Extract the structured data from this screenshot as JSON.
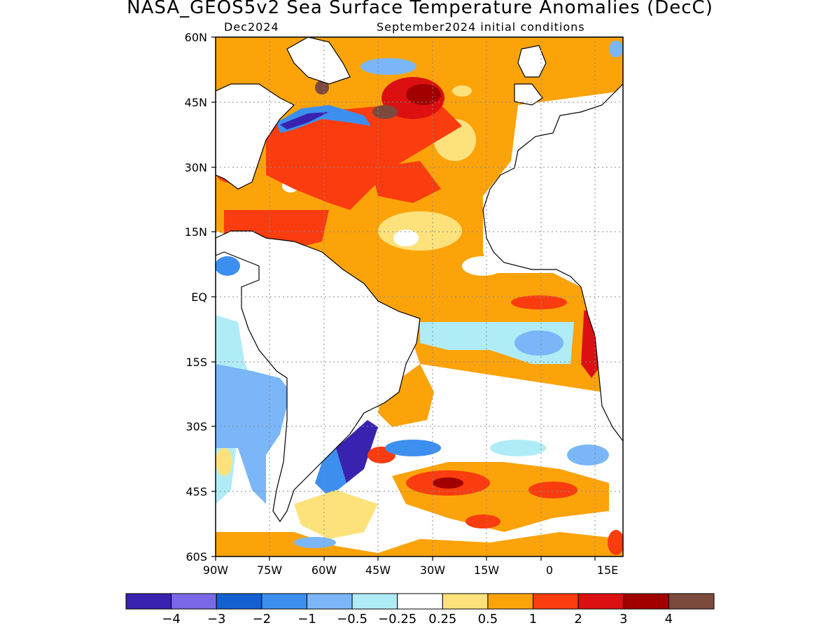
{
  "title": "NASA_GEOS5v2 Sea Surface Temperature Anomalies (DecC)",
  "subtitle_left": "Dec2024",
  "subtitle_right": "September2024 initial conditions",
  "lat_ticks": [
    "60N",
    "45N",
    "30N",
    "15N",
    "EQ",
    "15S",
    "30S",
    "45S",
    "60S"
  ],
  "lon_ticks": [
    "90W",
    "75W",
    "60W",
    "45W",
    "30W",
    "15W",
    "0",
    "15E"
  ],
  "colorbar": {
    "colors": [
      "#3a22b0",
      "#7b68e6",
      "#1560d0",
      "#3d8fef",
      "#7ab6f8",
      "#b0ecf6",
      "#ffffff",
      "#fde27c",
      "#fca30a",
      "#fa3c0f",
      "#dc1010",
      "#a20000",
      "#7b4a3c"
    ],
    "labels": [
      "-4",
      "-3",
      "-2",
      "-1",
      "-0.5",
      "-0.25",
      "0.25",
      "0.5",
      "1",
      "2",
      "3",
      "4"
    ]
  },
  "legend_colors": {
    "strong_cool": "#3a22b0",
    "cool": "#3d8fef",
    "slight_cool": "#b0ecf6",
    "neutral": "#ffffff",
    "slight_warm": "#fde27c",
    "warm": "#fca30a",
    "hot": "#fa3c0f",
    "very_hot": "#a20000",
    "extreme": "#7b4a3c"
  }
}
